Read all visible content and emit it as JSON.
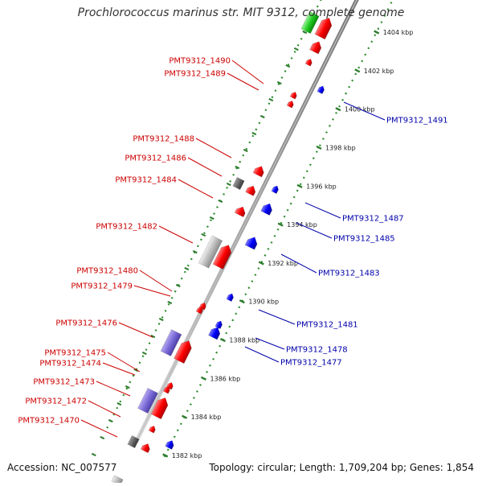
{
  "title": "Prochlorococcus marinus str. MIT 9312, complete genome",
  "accession_text": "Accession: NC_007577",
  "summary_text": "Topology: circular; Length: 1,709,204 bp; Genes: 1,854",
  "colors": {
    "forward_label": "#cc0000",
    "reverse_label": "#0000aa",
    "forward_feature": "#ff0000",
    "reverse_feature": "#0000ff",
    "backbone": "#8a8a8a",
    "dotted_guide": "#2e8b2e",
    "tick": "#2e7d2e"
  },
  "diagram": {
    "type": "linear genome map (diagonal strip)",
    "unit": "kbp",
    "scale_ticks": [
      {
        "position_kbp": 1382,
        "label": "1382 kbp"
      },
      {
        "position_kbp": 1384,
        "label": "1384 kbp"
      },
      {
        "position_kbp": 1386,
        "label": "1386 kbp"
      },
      {
        "position_kbp": 1388,
        "label": "1388 kbp"
      },
      {
        "position_kbp": 1390,
        "label": "1390 kbp"
      },
      {
        "position_kbp": 1392,
        "label": "1392 kbp"
      },
      {
        "position_kbp": 1394,
        "label": "1394 kbp"
      },
      {
        "position_kbp": 1396,
        "label": "1396 kbp"
      },
      {
        "position_kbp": 1398,
        "label": "1398 kbp"
      },
      {
        "position_kbp": 1400,
        "label": "1400 kbp"
      },
      {
        "position_kbp": 1402,
        "label": "1402 kbp"
      },
      {
        "position_kbp": 1404,
        "label": "1404 kbp"
      }
    ],
    "forward_labels": [
      "PMT9312_1490",
      "PMT9312_1489",
      "PMT9312_1488",
      "PMT9312_1486",
      "PMT9312_1484",
      "PMT9312_1482",
      "PMT9312_1480",
      "PMT9312_1479",
      "PMT9312_1476",
      "PMT9312_1475",
      "PMT9312_1474",
      "PMT9312_1473",
      "PMT9312_1472",
      "PMT9312_1470"
    ],
    "reverse_labels": [
      "PMT9312_1491",
      "PMT9312_1487",
      "PMT9312_1485",
      "PMT9312_1483",
      "PMT9312_1481",
      "PMT9312_1478",
      "PMT9312_1477"
    ]
  }
}
